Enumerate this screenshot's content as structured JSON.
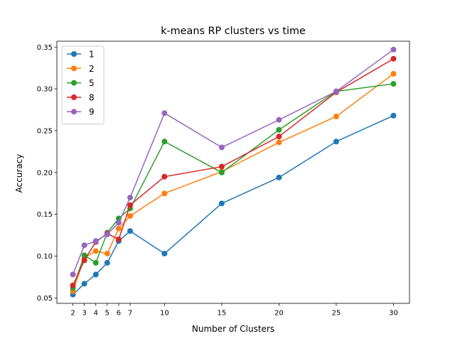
{
  "chart_data": {
    "type": "line",
    "title": "k-means RP clusters vs time",
    "xlabel": "Number of Clusters",
    "ylabel": "Accuracy",
    "x": [
      2,
      3,
      4,
      5,
      6,
      7,
      10,
      15,
      20,
      25,
      30
    ],
    "xticks": [
      2,
      3,
      4,
      5,
      6,
      7,
      10,
      15,
      20,
      25,
      30
    ],
    "yticks": [
      0.05,
      0.1,
      0.15,
      0.2,
      0.25,
      0.3,
      0.35
    ],
    "ytick_labels": [
      "0.05",
      "0.10",
      "0.15",
      "0.20",
      "0.25",
      "0.30",
      "0.35"
    ],
    "xlim": [
      0.6,
      31.4
    ],
    "ylim": [
      0.0435,
      0.357
    ],
    "grid": false,
    "legend_position": "upper left",
    "series": [
      {
        "name": "1",
        "color": "#1f77b4",
        "values": [
          0.054,
          0.067,
          0.078,
          0.092,
          0.118,
          0.13,
          0.103,
          0.163,
          0.194,
          0.237,
          0.268
        ]
      },
      {
        "name": "2",
        "color": "#ff7f0e",
        "values": [
          0.058,
          0.098,
          0.106,
          0.103,
          0.133,
          0.148,
          0.175,
          0.201,
          0.236,
          0.267,
          0.318
        ]
      },
      {
        "name": "5",
        "color": "#2ca02c",
        "values": [
          0.062,
          0.101,
          0.092,
          0.128,
          0.145,
          0.157,
          0.237,
          0.2,
          0.251,
          0.297,
          0.306
        ]
      },
      {
        "name": "8",
        "color": "#d62728",
        "values": [
          0.065,
          0.095,
          0.117,
          0.127,
          0.12,
          0.161,
          0.195,
          0.207,
          0.243,
          0.296,
          0.336
        ]
      },
      {
        "name": "9",
        "color": "#9467bd",
        "values": [
          0.078,
          0.113,
          0.118,
          0.126,
          0.14,
          0.17,
          0.271,
          0.23,
          0.263,
          0.297,
          0.347
        ]
      }
    ]
  }
}
